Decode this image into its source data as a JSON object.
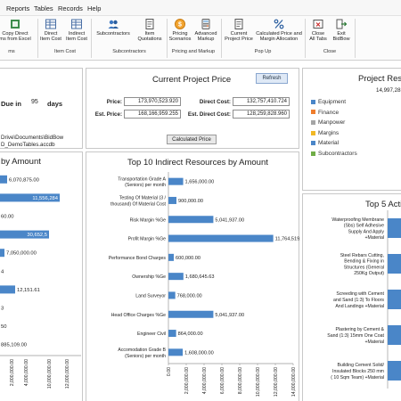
{
  "menu": {
    "items": [
      "Reports",
      "Tables",
      "Records",
      "Help"
    ]
  },
  "ribbon": {
    "buttons": {
      "copy_direct": "Copy Direct\nms from Excel",
      "direct_item_cost": "Direct\nItem Cost",
      "indirect_item_cost": "Indirect\nItem Cost",
      "subcontractors": "Subcontractors",
      "item_quotations": "Item\nQuotations",
      "pricing_scenarios": "Pricing\nScenarios",
      "advanced_markup": "Advanced\nMarkup",
      "current_project_price": "Current\nProject Price",
      "calc_price_margin": "Calculated Price and\nMargin Allocation",
      "close_all_tabs": "Close\nAll Tabs",
      "exit_bidbow": "Exit\nBidBow"
    },
    "groups": {
      "g1": "ms",
      "item_cost": "Item Cost",
      "subcontractors": "Subcontractors",
      "pricing_markup": "Pricing and Markup",
      "pop_up": "Pop Up",
      "close": "Close"
    }
  },
  "left_top": {
    "due_in_label": "Due in",
    "due_in_value": "95",
    "days_label": "days",
    "path_line1": "Drive\\Documents\\BidBow",
    "path_line2": "D_DemoTables.accdb"
  },
  "current_price": {
    "title": "Current Project Price",
    "refresh_label": "Refresh",
    "price_label": "Price:",
    "price_value": "173,970,523.920",
    "est_price_label": "Est. Price:",
    "est_price_value": "168,166,959.255",
    "direct_cost_label": "Direct Cost:",
    "direct_cost_value": "132,757,410.724",
    "est_direct_cost_label": "Est. Direct Cost:",
    "est_direct_cost_value": "128,259,828.960",
    "calculated_price_label": "Calculated Price"
  },
  "right_top": {
    "title": "Project Reso",
    "total": "14,997,28",
    "legend": [
      {
        "name": "Equipment",
        "color": "#4a86c8"
      },
      {
        "name": "Finance",
        "color": "#ef7d2c"
      },
      {
        "name": "Manpower",
        "color": "#a5a5a5"
      },
      {
        "name": "Margins",
        "color": "#f2b824"
      },
      {
        "name": "Material",
        "color": "#4a86c8"
      },
      {
        "name": "Subcontractors",
        "color": "#70ad47"
      }
    ]
  },
  "left_chart": {
    "title_fragment": "by Amount",
    "data_labels": [
      "6,070,875.00",
      "11,556,284",
      "60.00",
      "30,652,5",
      "7,050,000.00",
      "4",
      "12,151.61",
      "3",
      "50",
      "885,109.00"
    ],
    "x_ticks": [
      "2,000,000.00",
      "4,000,000.00",
      "10,000,000.00",
      "12,000,000.00"
    ]
  },
  "chart_data": {
    "type": "bar",
    "orientation": "horizontal",
    "title": "Top 10 Indirect Resources by Amount",
    "categories": [
      "Transportation Grade A (Seniors) per month",
      "Testing Of Material (3 / thousand) Of Material Cost",
      "Risk Margin %Ge",
      "Profit Margin %Ge",
      "Performance Bond Charges",
      "Ownership %Ge",
      "Land Surveyor",
      "Head Office Charges %Ge",
      "Engineer Civil",
      "Accomodation Grade B (Seniors) per month"
    ],
    "values": [
      1656000,
      900000,
      5041937,
      11764519,
      600000,
      1680645.63,
      768000,
      5041937,
      864000,
      1608000
    ],
    "data_labels": [
      "1,656,000.00",
      "900,000.00",
      "5,041,937.00",
      "11,764,519.00",
      "600,000.00",
      "1,680,645.63",
      "768,000.00",
      "5,041,937.00",
      "864,000.00",
      "1,608,000.00"
    ],
    "x_ticks": [
      "0.00",
      "2,000,000.00",
      "4,000,000.00",
      "6,000,000.00",
      "8,000,000.00",
      "10,000,000.00",
      "12,000,000.00",
      "14,000,000.00"
    ],
    "xlim": [
      0,
      14000000
    ],
    "color": "#4a86c8"
  },
  "right_chart": {
    "title": "Top 5 Activ",
    "categories": [
      "Waterproofing Membrane (Sbs) Self Adhesive Supply And Apply +Material",
      "Steel Rebars Cutting, Bending & Fixing in Structures (General 250Kg Output)",
      "Screeding with Cement and Sand (1:3) To Floors And Landings +Material",
      "Plastering by Cement & Sand (1:3) 15mm One Coat +Material",
      "Building Cement Solid/ Insulated Blocks 250 mm ( 10 Sqm Team) +Material"
    ]
  }
}
